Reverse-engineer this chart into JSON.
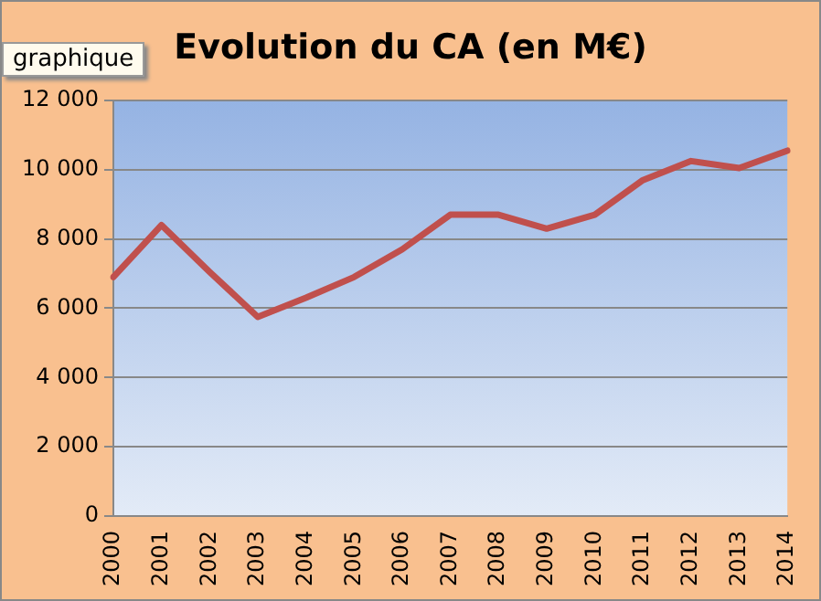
{
  "chart_data": {
    "type": "line",
    "title": "Evolution du CA (en M€)",
    "categories": [
      "2000",
      "2001",
      "2002",
      "2003",
      "2004",
      "2005",
      "2006",
      "2007",
      "2008",
      "2009",
      "2010",
      "2011",
      "2012",
      "2013",
      "2014"
    ],
    "series": [
      {
        "color": "#c0504d",
        "values": [
          6900,
          8400,
          7050,
          5750,
          6300,
          6900,
          7700,
          8700,
          8700,
          8300,
          8700,
          9700,
          10250,
          10050,
          10550
        ]
      }
    ],
    "ylim": [
      0,
      12000
    ],
    "yticks": [
      0,
      {
        "value": 2000,
        "label": "2 000"
      },
      {
        "value": 4000,
        "label": "4 000"
      },
      {
        "value": 6000,
        "label": "6 000"
      },
      {
        "value": 8000,
        "label": "8 000"
      },
      {
        "value": 10000,
        "label": "10 000"
      },
      {
        "value": 12000,
        "label": "12 000"
      }
    ],
    "grid": "y",
    "legend": false,
    "marker": "none",
    "line_style": "solid",
    "annotations": [
      "graphique"
    ]
  }
}
